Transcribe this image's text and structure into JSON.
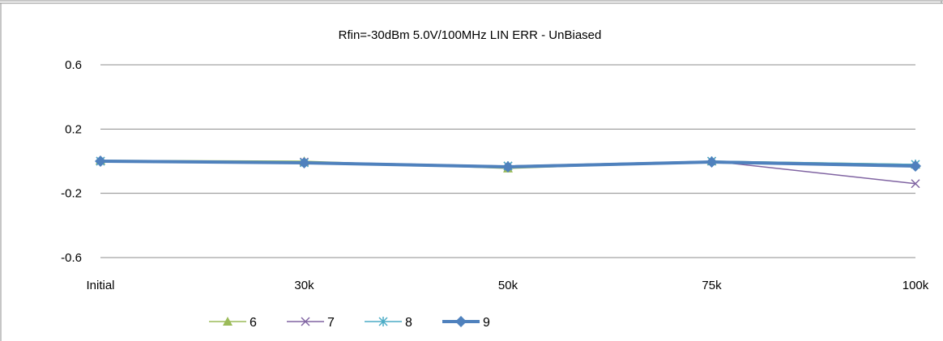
{
  "chart_data": {
    "type": "line",
    "title": "Rfin=-30dBm 5.0V/100MHz LIN ERR  - UnBiased",
    "xlabel": "",
    "ylabel": "",
    "categories": [
      "Initial",
      "30k",
      "50k",
      "75k",
      "100k"
    ],
    "yticks": [
      "0.6",
      "0.2",
      "-0.2",
      "-0.6"
    ],
    "ylim": [
      -0.6,
      0.6
    ],
    "grid": true,
    "legend_position": "bottom-left",
    "series": [
      {
        "name": "6",
        "marker": "triangle",
        "color": "#9BBB59",
        "width": 1.5,
        "values": [
          0.005,
          0.0,
          -0.045,
          0.0,
          -0.02
        ]
      },
      {
        "name": "7",
        "marker": "x",
        "color": "#8064A2",
        "width": 1.5,
        "values": [
          0.0,
          -0.005,
          -0.03,
          0.0,
          -0.14
        ]
      },
      {
        "name": "8",
        "marker": "star",
        "color": "#4BACC6",
        "width": 1.5,
        "values": [
          0.0,
          -0.01,
          -0.03,
          0.0,
          -0.02
        ]
      },
      {
        "name": "9",
        "marker": "diamond",
        "color": "#4F81BD",
        "width": 4,
        "values": [
          0.0,
          -0.01,
          -0.035,
          -0.005,
          -0.03
        ]
      }
    ]
  }
}
